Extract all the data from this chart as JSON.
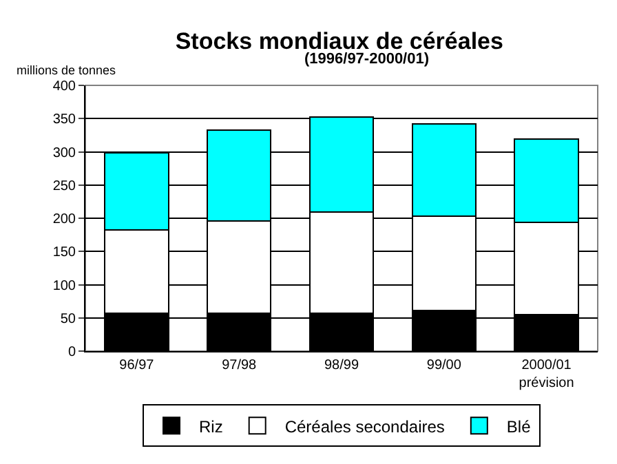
{
  "chart_data": {
    "type": "bar",
    "stacked": true,
    "title": "Stocks mondiaux de céréales",
    "subtitle": "(1996/97-2000/01)",
    "ylabel": "millions de tonnes",
    "categories": [
      "96/97",
      "97/98",
      "98/99",
      "99/00",
      "2000/01\nprévision"
    ],
    "series": [
      {
        "name": "Riz",
        "color": "#000000",
        "values": [
          57,
          57,
          57,
          61,
          55
        ]
      },
      {
        "name": "Céréales secondaires",
        "color": "#ffffff",
        "values": [
          125,
          139,
          152,
          142,
          139
        ]
      },
      {
        "name": "Blé",
        "color": "#00ffff",
        "values": [
          116,
          137,
          143,
          139,
          125
        ]
      }
    ],
    "ylim": [
      0,
      400
    ],
    "yticks": [
      0,
      50,
      100,
      150,
      200,
      250,
      300,
      350,
      400
    ],
    "grid": "y",
    "legend": "bottom"
  }
}
